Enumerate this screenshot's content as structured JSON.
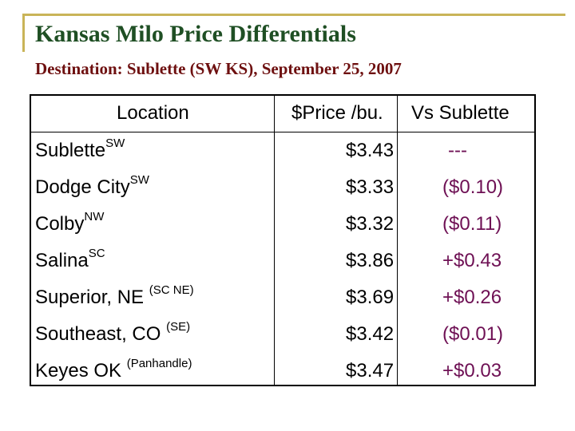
{
  "slide": {
    "title": "Kansas Milo Price Differentials",
    "subtitle": "Destination: Sublette (SW KS), September 25, 2007"
  },
  "table": {
    "headers": {
      "location": "Location",
      "price": "$Price /bu.",
      "vs": "Vs Sublette"
    },
    "rows": [
      {
        "location": "Sublette",
        "region": "SW",
        "price": "$3.43",
        "diff": "---"
      },
      {
        "location": "Dodge City",
        "region": "SW",
        "price": "$3.33",
        "diff": "($0.10)"
      },
      {
        "location": "Colby",
        "region": "NW",
        "price": "$3.32",
        "diff": "($0.11)"
      },
      {
        "location": "Salina",
        "region": "SC",
        "price": "$3.86",
        "diff": "+$0.43"
      },
      {
        "location": "Superior, NE ",
        "region": "(SC NE)",
        "price": "$3.69",
        "diff": "+$0.26"
      },
      {
        "location": "Southeast, CO ",
        "region": "(SE)",
        "price": "$3.42",
        "diff": "($0.01)"
      },
      {
        "location": "Keyes OK ",
        "region": "(Panhandle)",
        "price": "$3.47",
        "diff": "+$0.03"
      }
    ]
  },
  "colors": {
    "title": "#1f4f24",
    "subtitle": "#6e1010",
    "accent_lines": "#c9b458",
    "differential_text": "#6e1054"
  }
}
